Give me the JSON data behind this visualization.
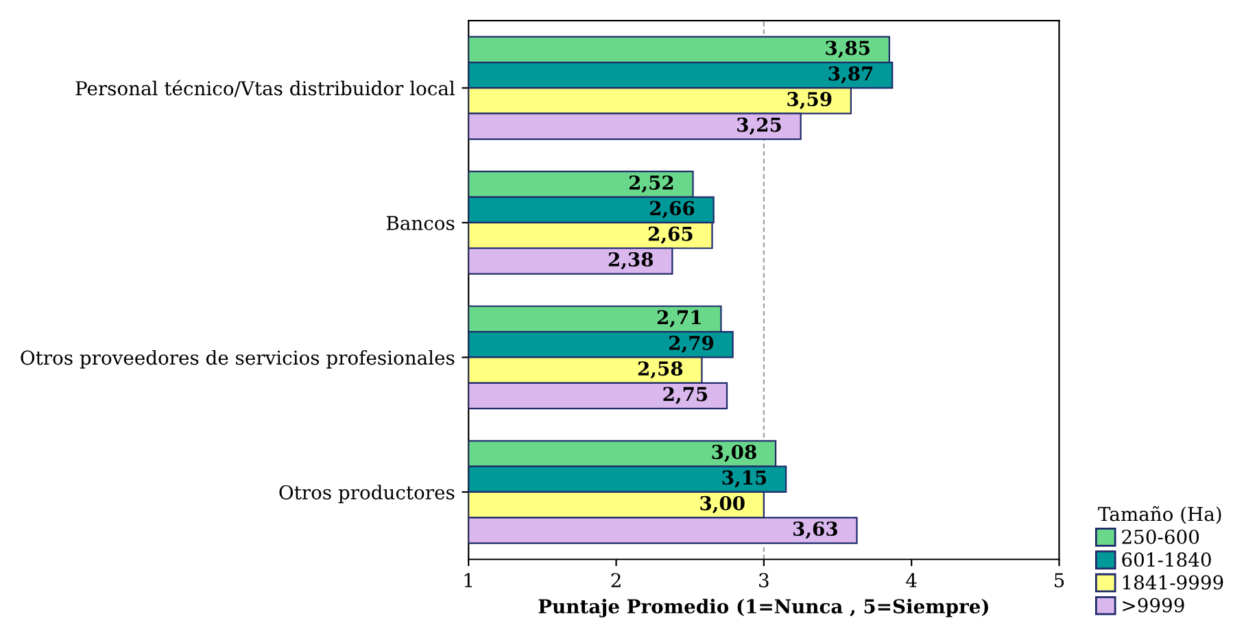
{
  "chart_data": {
    "type": "bar",
    "orientation": "horizontal",
    "xlabel": "Puntaje Promedio (1=Nunca , 5=Siempre)",
    "categories": [
      "Personal técnico/Vtas distribuidor local",
      "Bancos",
      "Otros proveedores de servicios profesionales",
      "Otros productores"
    ],
    "series": [
      {
        "name": "250-600",
        "color": "#6ad88a",
        "values": [
          3.85,
          2.52,
          2.71,
          3.08
        ],
        "value_labels": [
          "3,85",
          "2,52",
          "2,71",
          "3,08"
        ]
      },
      {
        "name": "601-1840",
        "color": "#009999",
        "values": [
          3.87,
          2.66,
          2.79,
          3.15
        ],
        "value_labels": [
          "3,87",
          "2,66",
          "2,79",
          "3,15"
        ]
      },
      {
        "name": "1841-9999",
        "color": "#ffff80",
        "values": [
          3.59,
          2.65,
          2.58,
          3.0
        ],
        "value_labels": [
          "3,59",
          "2,65",
          "2,58",
          "3,00"
        ]
      },
      {
        "name": ">9999",
        "color": "#dab8ee",
        "values": [
          3.25,
          2.38,
          2.75,
          3.63
        ],
        "value_labels": [
          "3,25",
          "2,38",
          "2,75",
          "3,63"
        ]
      }
    ],
    "xlim": [
      1,
      5
    ],
    "xticks": [
      1,
      2,
      3,
      4,
      5
    ],
    "ref_lines": [
      {
        "axis": "x",
        "value": 3,
        "color": "#a0a0a0",
        "line_style": "dashed"
      }
    ],
    "legend": "right",
    "legend_title": "Tamaño (Ha)",
    "grid": false
  }
}
